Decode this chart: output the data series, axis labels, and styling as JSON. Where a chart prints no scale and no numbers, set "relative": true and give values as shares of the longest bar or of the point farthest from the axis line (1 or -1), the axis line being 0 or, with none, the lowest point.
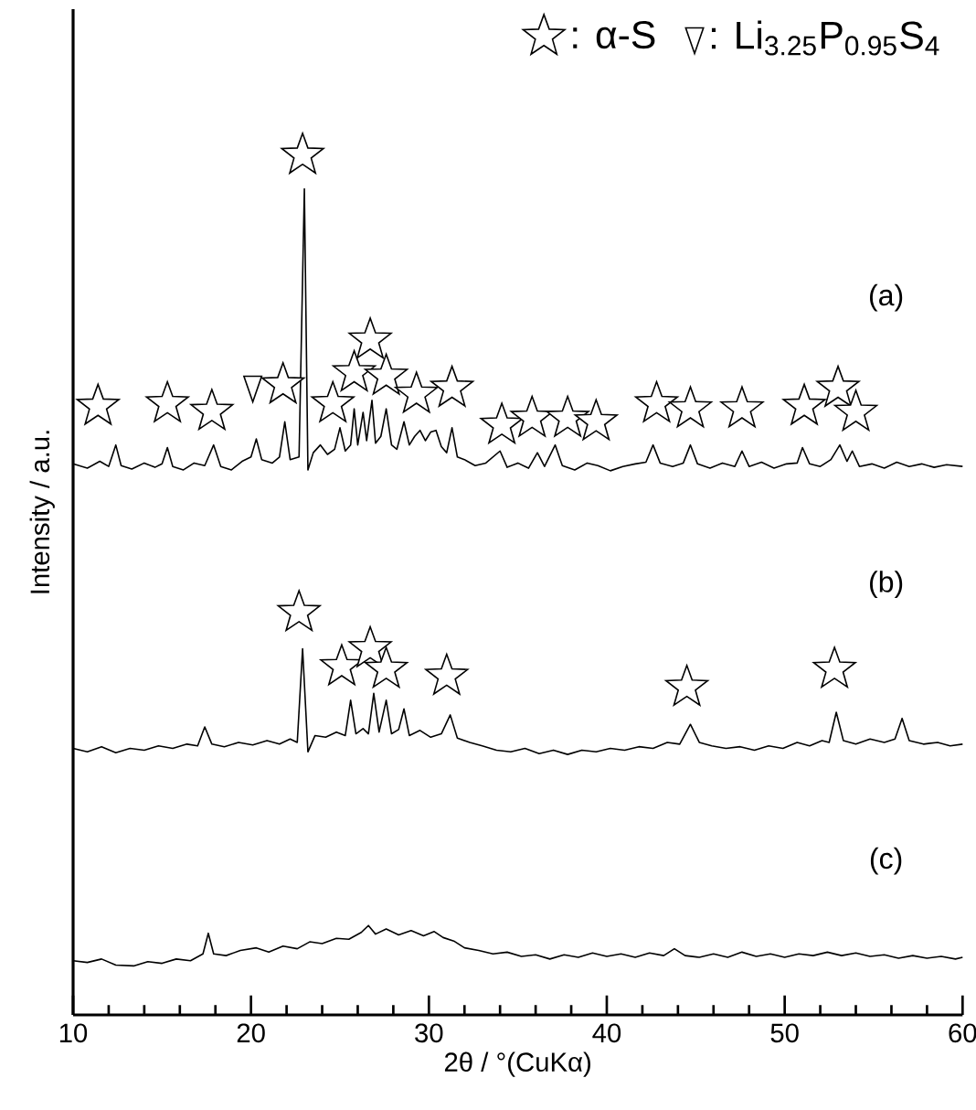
{
  "chart_data": {
    "type": "line",
    "relative": true,
    "xlabel": "2θ / °(CuKα)",
    "ylabel": "Intensity / a.u.",
    "xlim": [
      10,
      60
    ],
    "xticks": [
      10,
      20,
      30,
      40,
      50,
      60
    ],
    "legend": "top right",
    "annotations": [
      "(a)",
      "(b)",
      "(c)"
    ],
    "series": [
      {
        "color": "#000000",
        "x": [
          10.0,
          10.8,
          11.5,
          12.0,
          12.4,
          12.7,
          13.3,
          14.0,
          14.6,
          15.0,
          15.3,
          15.6,
          16.2,
          16.8,
          17.4,
          17.9,
          18.3,
          18.9,
          19.5,
          20.0,
          20.3,
          20.6,
          21.2,
          21.6,
          21.9,
          22.2,
          22.7,
          23.0,
          23.2,
          23.5,
          23.9,
          24.3,
          24.7,
          25.0,
          25.3,
          25.6,
          25.8,
          26.0,
          26.3,
          26.5,
          26.8,
          27.0,
          27.3,
          27.6,
          27.9,
          28.2,
          28.6,
          28.9,
          29.2,
          29.5,
          29.8,
          30.1,
          30.4,
          30.7,
          31.0,
          31.3,
          31.6,
          32.0,
          32.6,
          33.2,
          34.0,
          34.4,
          35.0,
          35.6,
          36.1,
          36.5,
          37.1,
          37.5,
          38.2,
          38.9,
          39.5,
          40.2,
          40.9,
          41.6,
          42.2,
          42.6,
          43.0,
          43.7,
          44.3,
          44.7,
          45.1,
          45.8,
          46.5,
          47.2,
          47.6,
          48.0,
          48.7,
          49.4,
          50.1,
          50.7,
          51.0,
          51.4,
          52.0,
          52.6,
          53.1,
          53.5,
          53.8,
          54.2,
          54.9,
          55.6,
          56.3,
          57.0,
          57.7,
          58.4,
          59.1,
          60.0
        ],
        "values": [
          0.641,
          0.636,
          0.644,
          0.638,
          0.663,
          0.639,
          0.635,
          0.642,
          0.637,
          0.641,
          0.66,
          0.638,
          0.634,
          0.642,
          0.639,
          0.663,
          0.638,
          0.634,
          0.644,
          0.649,
          0.67,
          0.646,
          0.642,
          0.649,
          0.69,
          0.646,
          0.649,
          0.961,
          0.634,
          0.654,
          0.663,
          0.652,
          0.658,
          0.683,
          0.656,
          0.663,
          0.705,
          0.663,
          0.701,
          0.668,
          0.715,
          0.665,
          0.673,
          0.705,
          0.663,
          0.658,
          0.69,
          0.663,
          0.673,
          0.68,
          0.668,
          0.678,
          0.68,
          0.661,
          0.654,
          0.683,
          0.649,
          0.646,
          0.639,
          0.642,
          0.656,
          0.637,
          0.642,
          0.636,
          0.654,
          0.638,
          0.663,
          0.639,
          0.634,
          0.642,
          0.639,
          0.633,
          0.638,
          0.641,
          0.643,
          0.663,
          0.642,
          0.638,
          0.642,
          0.663,
          0.641,
          0.636,
          0.642,
          0.638,
          0.656,
          0.638,
          0.643,
          0.636,
          0.641,
          0.642,
          0.66,
          0.641,
          0.638,
          0.646,
          0.663,
          0.644,
          0.656,
          0.638,
          0.641,
          0.636,
          0.643,
          0.638,
          0.641,
          0.637,
          0.64,
          0.638
        ]
      },
      {
        "color": "#000000",
        "x": [
          10.0,
          10.8,
          11.6,
          12.4,
          13.2,
          14.0,
          14.8,
          15.6,
          16.4,
          17.0,
          17.4,
          17.8,
          18.5,
          19.3,
          20.1,
          20.9,
          21.6,
          22.2,
          22.6,
          22.9,
          23.2,
          23.6,
          24.2,
          24.8,
          25.3,
          25.6,
          25.9,
          26.3,
          26.6,
          26.9,
          27.2,
          27.6,
          27.9,
          28.3,
          28.6,
          28.9,
          29.5,
          30.1,
          30.7,
          31.2,
          31.6,
          32.3,
          33.0,
          33.8,
          34.6,
          35.4,
          36.2,
          37.0,
          37.8,
          38.6,
          39.4,
          40.2,
          41.0,
          41.8,
          42.6,
          43.4,
          44.1,
          44.7,
          45.2,
          45.9,
          46.7,
          47.5,
          48.3,
          49.1,
          49.9,
          50.7,
          51.4,
          52.1,
          52.5,
          52.9,
          53.3,
          54.0,
          54.8,
          55.6,
          56.2,
          56.6,
          57.0,
          57.8,
          58.6,
          59.3,
          60.0
        ],
        "values": [
          0.31,
          0.306,
          0.312,
          0.305,
          0.31,
          0.308,
          0.313,
          0.31,
          0.315,
          0.313,
          0.335,
          0.315,
          0.312,
          0.317,
          0.314,
          0.319,
          0.315,
          0.321,
          0.317,
          0.426,
          0.306,
          0.325,
          0.323,
          0.329,
          0.325,
          0.366,
          0.327,
          0.333,
          0.327,
          0.374,
          0.329,
          0.366,
          0.327,
          0.332,
          0.356,
          0.325,
          0.331,
          0.323,
          0.327,
          0.349,
          0.322,
          0.317,
          0.313,
          0.308,
          0.306,
          0.31,
          0.304,
          0.308,
          0.303,
          0.308,
          0.306,
          0.31,
          0.308,
          0.312,
          0.31,
          0.317,
          0.315,
          0.338,
          0.317,
          0.313,
          0.31,
          0.312,
          0.308,
          0.313,
          0.31,
          0.317,
          0.313,
          0.319,
          0.317,
          0.352,
          0.319,
          0.315,
          0.321,
          0.317,
          0.321,
          0.345,
          0.319,
          0.315,
          0.317,
          0.313,
          0.315
        ]
      },
      {
        "color": "#000000",
        "x": [
          10.0,
          10.8,
          11.6,
          12.4,
          13.4,
          14.2,
          15.0,
          15.8,
          16.6,
          17.3,
          17.6,
          17.9,
          18.6,
          19.4,
          20.3,
          21.0,
          21.8,
          22.6,
          23.3,
          24.0,
          24.8,
          25.5,
          26.2,
          26.6,
          27.0,
          27.6,
          28.3,
          29.0,
          29.7,
          30.3,
          30.8,
          31.4,
          32.0,
          32.8,
          33.6,
          34.4,
          35.2,
          36.0,
          36.8,
          37.6,
          38.4,
          39.2,
          40.0,
          40.8,
          41.6,
          42.4,
          43.2,
          43.8,
          44.4,
          45.2,
          46.0,
          46.8,
          47.6,
          48.4,
          49.2,
          50.0,
          50.8,
          51.6,
          52.4,
          53.2,
          54.0,
          54.8,
          55.6,
          56.4,
          57.2,
          58.0,
          58.8,
          59.6,
          60.0
        ],
        "values": [
          0.063,
          0.061,
          0.065,
          0.058,
          0.057,
          0.062,
          0.06,
          0.065,
          0.063,
          0.071,
          0.095,
          0.071,
          0.069,
          0.075,
          0.078,
          0.073,
          0.08,
          0.077,
          0.085,
          0.083,
          0.089,
          0.088,
          0.096,
          0.104,
          0.094,
          0.1,
          0.093,
          0.098,
          0.092,
          0.097,
          0.09,
          0.086,
          0.078,
          0.075,
          0.071,
          0.073,
          0.068,
          0.07,
          0.065,
          0.07,
          0.067,
          0.072,
          0.068,
          0.071,
          0.067,
          0.072,
          0.069,
          0.077,
          0.069,
          0.067,
          0.071,
          0.067,
          0.073,
          0.068,
          0.071,
          0.067,
          0.071,
          0.069,
          0.073,
          0.069,
          0.072,
          0.068,
          0.07,
          0.066,
          0.069,
          0.066,
          0.068,
          0.065,
          0.067
        ]
      },
      {
        "type": "scatter",
        "name": ": α-S",
        "marker": "star",
        "color": "#000000",
        "x": [
          11.4,
          15.3,
          17.8,
          21.8,
          22.9,
          24.6,
          25.8,
          26.7,
          27.6,
          29.3,
          31.3,
          34.1,
          35.8,
          37.8,
          39.4,
          42.8,
          44.7,
          47.6,
          51.1,
          53.0,
          54.0,
          22.7,
          25.1,
          26.7,
          27.6,
          31.0,
          44.5,
          52.8
        ],
        "values": [
          0.708,
          0.711,
          0.702,
          0.733,
          1.0,
          0.711,
          0.747,
          0.785,
          0.743,
          0.722,
          0.729,
          0.686,
          0.694,
          0.694,
          0.69,
          0.711,
          0.705,
          0.705,
          0.708,
          0.729,
          0.701,
          0.468,
          0.405,
          0.426,
          0.402,
          0.394,
          0.381,
          0.402
        ]
      },
      {
        "type": "scatter",
        "name": ": Li$_{3.25}$P$_{0.95}$S$_{4}$",
        "marker": "triangle",
        "color": "#000000",
        "x": [
          20.1
        ],
        "values": [
          0.733
        ]
      }
    ]
  }
}
